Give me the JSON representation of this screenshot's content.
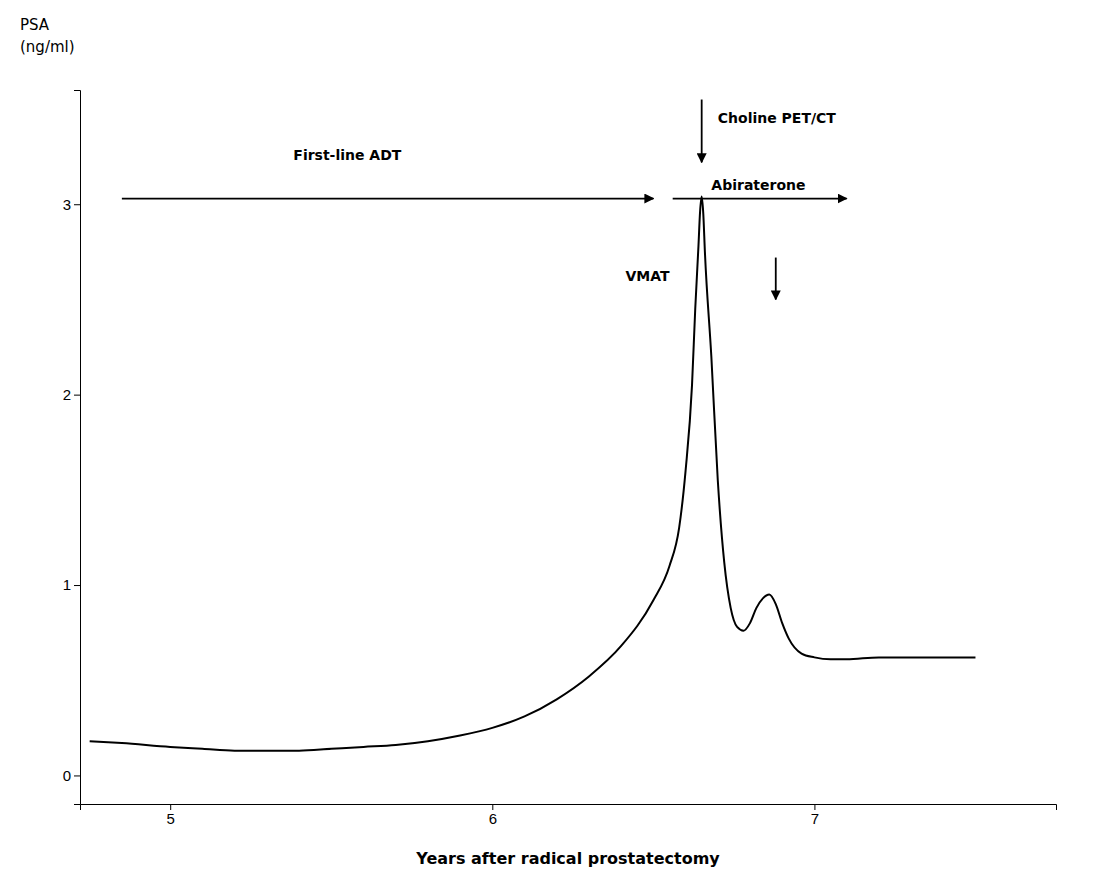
{
  "chart_data": {
    "type": "line",
    "xlabel": "Years after radical prostatectomy",
    "ylabel": [
      "PSA",
      "(ng/ml)"
    ],
    "color": "#000000",
    "x": [
      4.75,
      4.85,
      5.0,
      5.1,
      5.2,
      5.3,
      5.4,
      5.5,
      5.6,
      5.7,
      5.8,
      5.9,
      6.0,
      6.1,
      6.2,
      6.3,
      6.4,
      6.5,
      6.55,
      6.58,
      6.6,
      6.62,
      6.63,
      6.64,
      6.645,
      6.65,
      6.655,
      6.66,
      6.68,
      6.7,
      6.72,
      6.74,
      6.76,
      6.78,
      6.8,
      6.82,
      6.84,
      6.86,
      6.88,
      6.9,
      6.92,
      6.96,
      7.0,
      7.05,
      7.1,
      7.2,
      7.3,
      7.5
    ],
    "values": [
      0.18,
      0.17,
      0.15,
      0.14,
      0.13,
      0.13,
      0.13,
      0.14,
      0.15,
      0.16,
      0.18,
      0.21,
      0.25,
      0.31,
      0.4,
      0.52,
      0.68,
      0.92,
      1.1,
      1.3,
      1.6,
      2.05,
      2.45,
      2.78,
      2.96,
      3.04,
      2.95,
      2.75,
      2.2,
      1.55,
      1.12,
      0.88,
      0.78,
      0.76,
      0.8,
      0.88,
      0.93,
      0.95,
      0.9,
      0.8,
      0.72,
      0.64,
      0.62,
      0.61,
      0.61,
      0.62,
      0.62,
      0.62
    ],
    "xlim": [
      4.72,
      7.75
    ],
    "ylim": [
      -0.15,
      3.6
    ],
    "xticks": [
      5,
      6,
      7
    ],
    "yticks": [
      0,
      1,
      2,
      3
    ],
    "annotations": [
      {
        "text": "Choline PET/CT",
        "x": 6.7,
        "y": 3.45,
        "arrow": {
          "x": 6.65,
          "y1": 3.55,
          "y2": 3.22
        }
      },
      {
        "text": "Abiraterone",
        "x": 6.68,
        "y": 3.05,
        "arrow": {
          "x1": 6.56,
          "x2": 7.1,
          "y": 3.03
        }
      },
      {
        "text": "VMAT",
        "x": 6.55,
        "y": 2.62,
        "arrow": {
          "x": 6.88,
          "y1": 2.72,
          "y2": 2.5
        }
      },
      {
        "text": "First-line ADT",
        "x": 5.55,
        "y": 3.22,
        "arrow": {
          "x1": 4.85,
          "x2": 6.5,
          "y": 3.03
        }
      }
    ]
  }
}
